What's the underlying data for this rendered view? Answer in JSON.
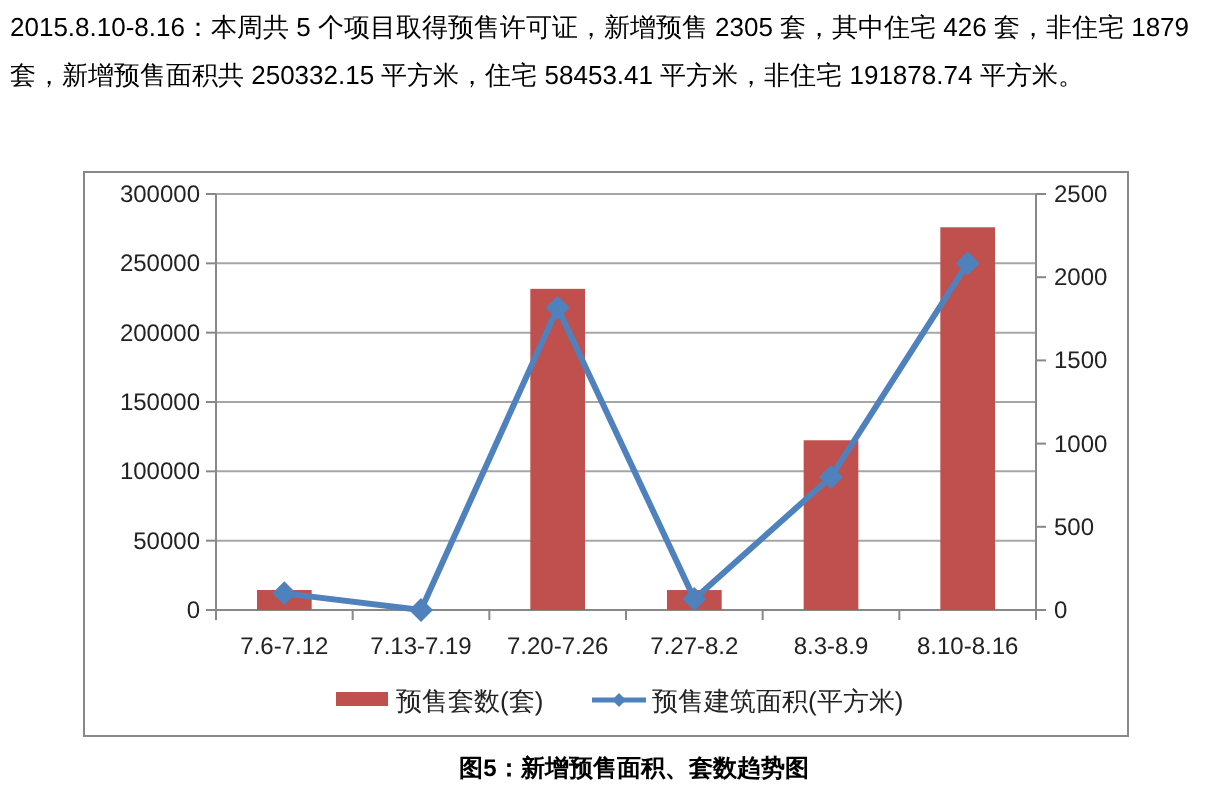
{
  "chart_data": {
    "type": "bar",
    "title": "图5：新增预售面积、套数趋势图",
    "annotations": [
      "2015.8.10-8.16：本周共 5 个项目取得预售许可证，新增预售 2305 套，其中住宅 426 套，非住宅 1879 套，新增预售面积共 250332.15 平方米，住宅 58453.41 平方米，非住宅 191878.74 平方米。"
    ],
    "categories": [
      "7.6-7.12",
      "7.13-7.19",
      "7.20-7.26",
      "7.27-8.2",
      "8.3-8.9",
      "8.10-8.16"
    ],
    "series": [
      {
        "name": "预售套数(套)",
        "axis": "y2",
        "color": "#c0504d",
        "values": [
          120,
          0,
          1930,
          120,
          1020,
          2300
        ]
      },
      {
        "name": "预售建筑面积(平方米)",
        "type": "line",
        "axis": "y",
        "color": "#4f81bd",
        "marker": "diamond",
        "values": [
          12000,
          0,
          218000,
          8000,
          96000,
          250000
        ]
      }
    ],
    "ylim": [
      0,
      300000
    ],
    "yticks": [
      0,
      50000,
      100000,
      150000,
      200000,
      250000,
      300000
    ],
    "y2lim": [
      0,
      2500
    ],
    "y2ticks": [
      0,
      500,
      1000,
      1500,
      2000,
      2500
    ],
    "grid": "y",
    "legend": "bottom"
  }
}
